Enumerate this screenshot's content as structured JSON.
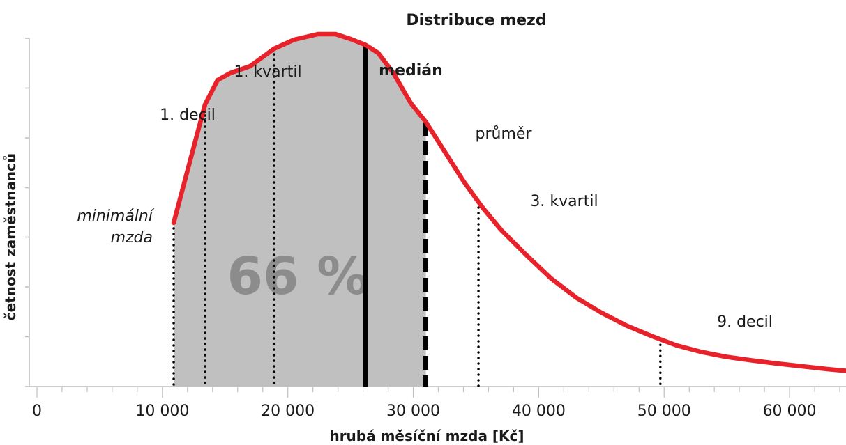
{
  "chart_data": {
    "type": "area",
    "title": "Distribuce mezd",
    "xlabel": "hrubá měsíční mzda [Kč]",
    "ylabel": "četnost zaměstnanců",
    "xlim": [
      0,
      64500
    ],
    "ylim": [
      0,
      100
    ],
    "grid": false,
    "x_ticks": [
      {
        "value": 0,
        "label": "0"
      },
      {
        "value": 10000,
        "label": "10 000"
      },
      {
        "value": 20000,
        "label": "20 000"
      },
      {
        "value": 30000,
        "label": "30 000"
      },
      {
        "value": 40000,
        "label": "40 000"
      },
      {
        "value": 50000,
        "label": "50 000"
      },
      {
        "value": 60000,
        "label": "60 000"
      }
    ],
    "y_ticks": [
      0,
      14.3,
      28.6,
      42.9,
      57.1,
      71.4,
      85.7,
      100
    ],
    "curve": {
      "color": "#e8222b",
      "x": [
        10900,
        12000,
        13400,
        14400,
        15400,
        17000,
        18900,
        20500,
        22400,
        23800,
        25000,
        26200,
        27200,
        28400,
        29800,
        31000,
        32500,
        34000,
        35500,
        37000,
        39000,
        41000,
        43000,
        45000,
        47000,
        49000,
        51000,
        53000,
        55000,
        57000,
        59000,
        61000,
        63000,
        64500
      ],
      "y": [
        47,
        62,
        81,
        88,
        90,
        92,
        97,
        99.6,
        101.2,
        101.2,
        99.8,
        98.1,
        95.8,
        90.1,
        81.4,
        76,
        67.5,
        59,
        51.5,
        45,
        37.8,
        31,
        25.5,
        21.2,
        17.5,
        14.5,
        11.8,
        9.9,
        8.5,
        7.5,
        6.6,
        5.8,
        5,
        4.5
      ]
    },
    "shaded_region": {
      "from": 10900,
      "to": 31000,
      "color": "#c0c0c0",
      "label": "66 %"
    },
    "markers": [
      {
        "name": "minimální mzda",
        "x": 10900,
        "style": "dotted",
        "label_lines": [
          "minimální",
          "mzda"
        ],
        "italic": true,
        "bold": false
      },
      {
        "name": "1. decil",
        "x": 13400,
        "style": "dotted",
        "label_lines": [
          "1. decil"
        ],
        "italic": false,
        "bold": false
      },
      {
        "name": "1. kvartil",
        "x": 18900,
        "style": "dotted",
        "label_lines": [
          "1. kvartil"
        ],
        "italic": false,
        "bold": false
      },
      {
        "name": "medián",
        "x": 26200,
        "style": "solid",
        "label_lines": [
          "medián"
        ],
        "italic": false,
        "bold": true
      },
      {
        "name": "průměr",
        "x": 31000,
        "style": "dashed",
        "label_lines": [
          "průměr"
        ],
        "italic": false,
        "bold": false
      },
      {
        "name": "3. kvartil",
        "x": 35200,
        "style": "dotted",
        "label_lines": [
          "3. kvartil"
        ],
        "italic": false,
        "bold": false
      },
      {
        "name": "9. decil",
        "x": 49700,
        "style": "dotted",
        "label_lines": [
          "9. decil"
        ],
        "italic": false,
        "bold": false
      }
    ]
  }
}
